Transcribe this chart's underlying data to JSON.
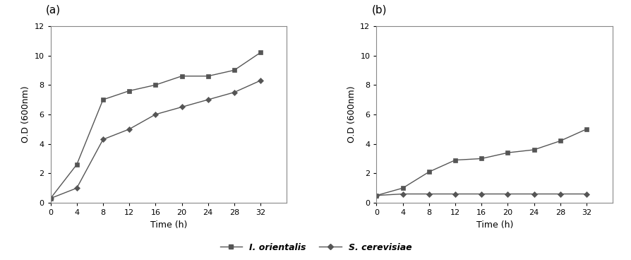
{
  "time": [
    0,
    4,
    8,
    12,
    16,
    20,
    24,
    28,
    32
  ],
  "panel_a": {
    "I_orientalis": [
      0.3,
      2.6,
      7.0,
      7.6,
      8.0,
      8.6,
      8.6,
      9.0,
      10.2
    ],
    "S_cerevisiae": [
      0.3,
      1.0,
      4.3,
      5.0,
      6.0,
      6.5,
      7.0,
      7.5,
      8.3
    ]
  },
  "panel_b": {
    "I_orientalis": [
      0.5,
      1.0,
      2.1,
      2.9,
      3.0,
      3.4,
      3.6,
      4.2,
      5.0
    ],
    "S_cerevisiae": [
      0.5,
      0.6,
      0.6,
      0.6,
      0.6,
      0.6,
      0.6,
      0.6,
      0.6
    ]
  },
  "xlim": [
    0,
    36
  ],
  "xticks": [
    0,
    4,
    8,
    12,
    16,
    20,
    24,
    28,
    32
  ],
  "ylim": [
    0,
    12
  ],
  "yticks": [
    0,
    2,
    4,
    6,
    8,
    10,
    12
  ],
  "xlabel": "Time (h)",
  "ylabel": "O.D (600nm)",
  "panel_a_label": "(a)",
  "panel_b_label": "(b)",
  "line_color": "#555555",
  "marker_square": "s",
  "marker_diamond": "D",
  "marker_size": 4,
  "line_width": 1.0,
  "legend_I_orientalis": "I. orientalis",
  "legend_S_cerevisiae": "S. cerevisiae",
  "background_color": "#ffffff",
  "axis_bg_color": "#ffffff"
}
